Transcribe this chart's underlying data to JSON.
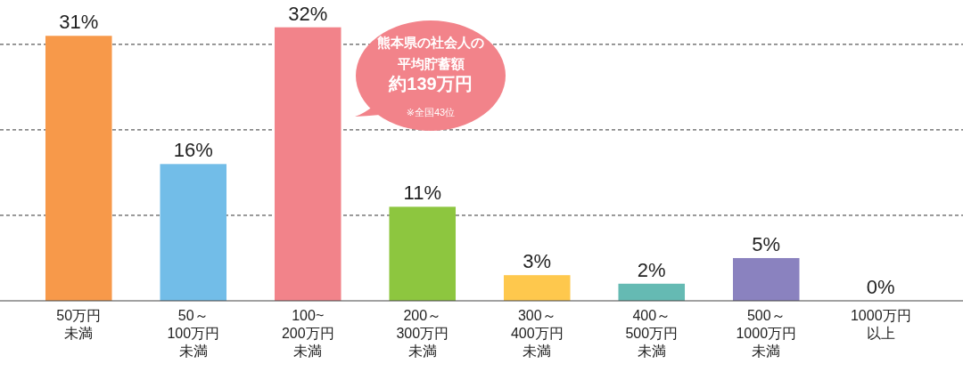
{
  "chart_data": {
    "type": "bar",
    "categories": [
      "50万円未満",
      "50～100万円未満",
      "100~200万円未満",
      "200～300万円未満",
      "300～400万円未満",
      "400～500万円未満",
      "500～1000万円未満",
      "1000万円以上"
    ],
    "values": [
      31,
      16,
      32,
      11,
      3,
      2,
      5,
      0
    ],
    "colors": [
      "#f7994a",
      "#72bde8",
      "#f2838a",
      "#8dc63f",
      "#fec84d",
      "#65bab3",
      "#8a82bf",
      "#cccccc"
    ],
    "value_labels": [
      "31%",
      "16%",
      "32%",
      "11%",
      "3%",
      "2%",
      "5%",
      "0%"
    ],
    "yticks": [
      {
        "value": 10,
        "label": null
      },
      {
        "value": 20,
        "label": null
      },
      {
        "value": 30,
        "label": null
      }
    ],
    "grid": "y",
    "tick_labels": "x",
    "annotations": [
      "熊本県の社会人の平均貯蓄額",
      "約139万円",
      "※全国43位"
    ]
  }
}
